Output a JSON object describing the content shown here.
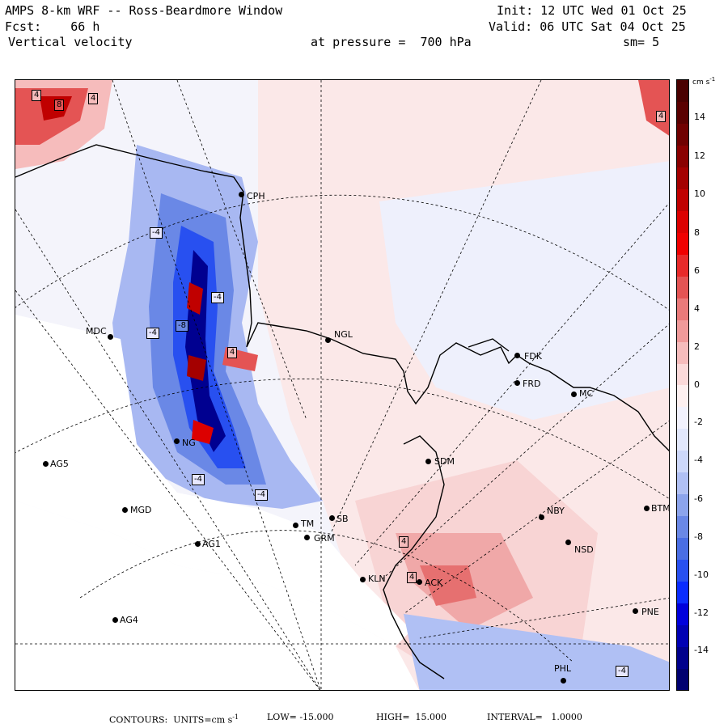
{
  "header": {
    "title": "AMPS 8-km WRF -- Ross-Beardmore Window",
    "init": "Init: 12 UTC Wed 01 Oct 25",
    "fcst": "Fcst:    66 h",
    "valid": "Valid: 06 UTC Sat 04 Oct 25",
    "field": "Vertical velocity",
    "pressure": "at pressure =  700 hPa",
    "smooth": "sm= 5"
  },
  "colorbar": {
    "unit": "cm s",
    "unit_exp": "-1",
    "ticks": [
      "14",
      "12",
      "10",
      "8",
      "6",
      "4",
      "2",
      "0",
      "-2",
      "-4",
      "-6",
      "-8",
      "-10",
      "-12",
      "-14"
    ],
    "colors": [
      "#000070",
      "#00008c",
      "#0000b4",
      "#0000dc",
      "#0a2cff",
      "#2850f0",
      "#4a6ee4",
      "#6a88e6",
      "#8ca4ec",
      "#b0c0f4",
      "#cdd8fa",
      "#e2e8fc",
      "#f2f2fd",
      "#fdf0f0",
      "#fbdada",
      "#f6bcbc",
      "#f09a9a",
      "#ea7a7a",
      "#e45454",
      "#e82a2a",
      "#f00000",
      "#dc0000",
      "#c00000",
      "#a40000",
      "#8a0000",
      "#700000",
      "#5a0000",
      "#4a0000"
    ]
  },
  "stations": [
    {
      "id": "CPH"
    },
    {
      "id": "NGL"
    },
    {
      "id": "MDC"
    },
    {
      "id": "FDK"
    },
    {
      "id": "FRD"
    },
    {
      "id": "MC"
    },
    {
      "id": "SDM"
    },
    {
      "id": "AG5"
    },
    {
      "id": "MGD"
    },
    {
      "id": "NBY"
    },
    {
      "id": "AG1"
    },
    {
      "id": "GRM"
    },
    {
      "id": "NSD"
    },
    {
      "id": "BTM"
    },
    {
      "id": "KLN"
    },
    {
      "id": "ACK"
    },
    {
      "id": "AG4"
    },
    {
      "id": "PNE"
    },
    {
      "id": "PHL"
    },
    {
      "id": "NG"
    },
    {
      "id": "TM"
    },
    {
      "id": "SB"
    }
  ],
  "contour_labels": [
    "4",
    "8",
    "4",
    "4",
    "-4",
    "-4",
    "-4",
    "-8",
    "4",
    "-4",
    "-4",
    "4",
    "4",
    "-4"
  ],
  "footer": {
    "contours": "CONTOURS:  UNITS=cm s",
    "unit_exp": "-1",
    "low": "LOW= -15.000",
    "high": "HIGH=  15.000",
    "interval": "INTERVAL=   1.0000"
  }
}
